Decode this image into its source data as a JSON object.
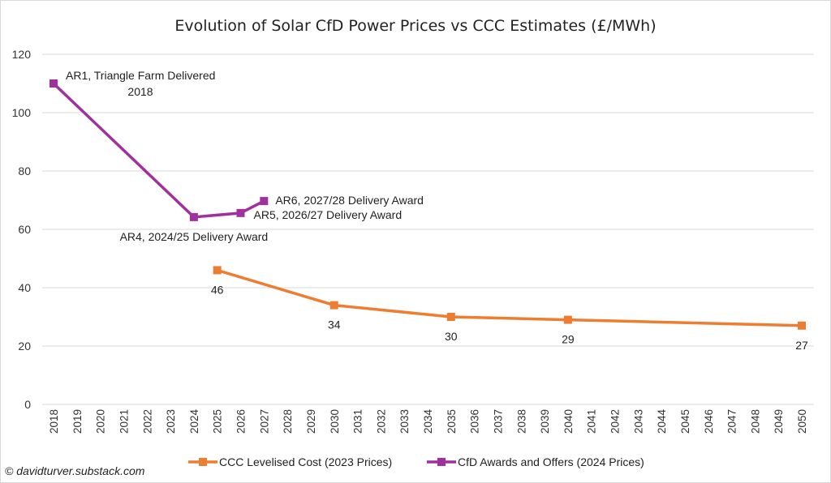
{
  "chart_data": {
    "type": "line",
    "title": "Evolution of Solar CfD Power Prices vs CCC  Estimates (£/MWh)",
    "xlabel": "",
    "ylabel": "",
    "ylim": [
      0,
      120
    ],
    "xlim": [
      2018,
      2050
    ],
    "yticks": [
      0,
      20,
      40,
      60,
      80,
      100,
      120
    ],
    "x": [
      2018,
      2019,
      2020,
      2021,
      2022,
      2023,
      2024,
      2025,
      2026,
      2027,
      2028,
      2029,
      2030,
      2031,
      2032,
      2033,
      2034,
      2035,
      2036,
      2037,
      2038,
      2039,
      2040,
      2041,
      2042,
      2043,
      2044,
      2045,
      2046,
      2047,
      2048,
      2049,
      2050
    ],
    "grid": "horizontal",
    "legend_position": "bottom",
    "series": [
      {
        "name": "CCC Levelised Cost (2023 Prices)",
        "color": "#ED7D31",
        "points": [
          {
            "x": 2025,
            "y": 46,
            "label": "46"
          },
          {
            "x": 2030,
            "y": 34,
            "label": "34"
          },
          {
            "x": 2035,
            "y": 30,
            "label": "30"
          },
          {
            "x": 2040,
            "y": 29,
            "label": "29"
          },
          {
            "x": 2050,
            "y": 27,
            "label": "27"
          }
        ]
      },
      {
        "name": "CfD Awards and Offers (2024 Prices)",
        "color": "#A0309E",
        "points": [
          {
            "x": 2018,
            "y": 110,
            "label": "AR1, Triangle Farm Delivered\n2018"
          },
          {
            "x": 2024,
            "y": 64.2,
            "label": "AR4, 2024/25 Delivery Award"
          },
          {
            "x": 2026,
            "y": 65.6,
            "label": "AR5, 2026/27 Delivery Award"
          },
          {
            "x": 2027,
            "y": 69.7,
            "label": "AR6, 2027/28 Delivery Award"
          }
        ]
      }
    ]
  },
  "credit": "© davidturver.substack.com"
}
